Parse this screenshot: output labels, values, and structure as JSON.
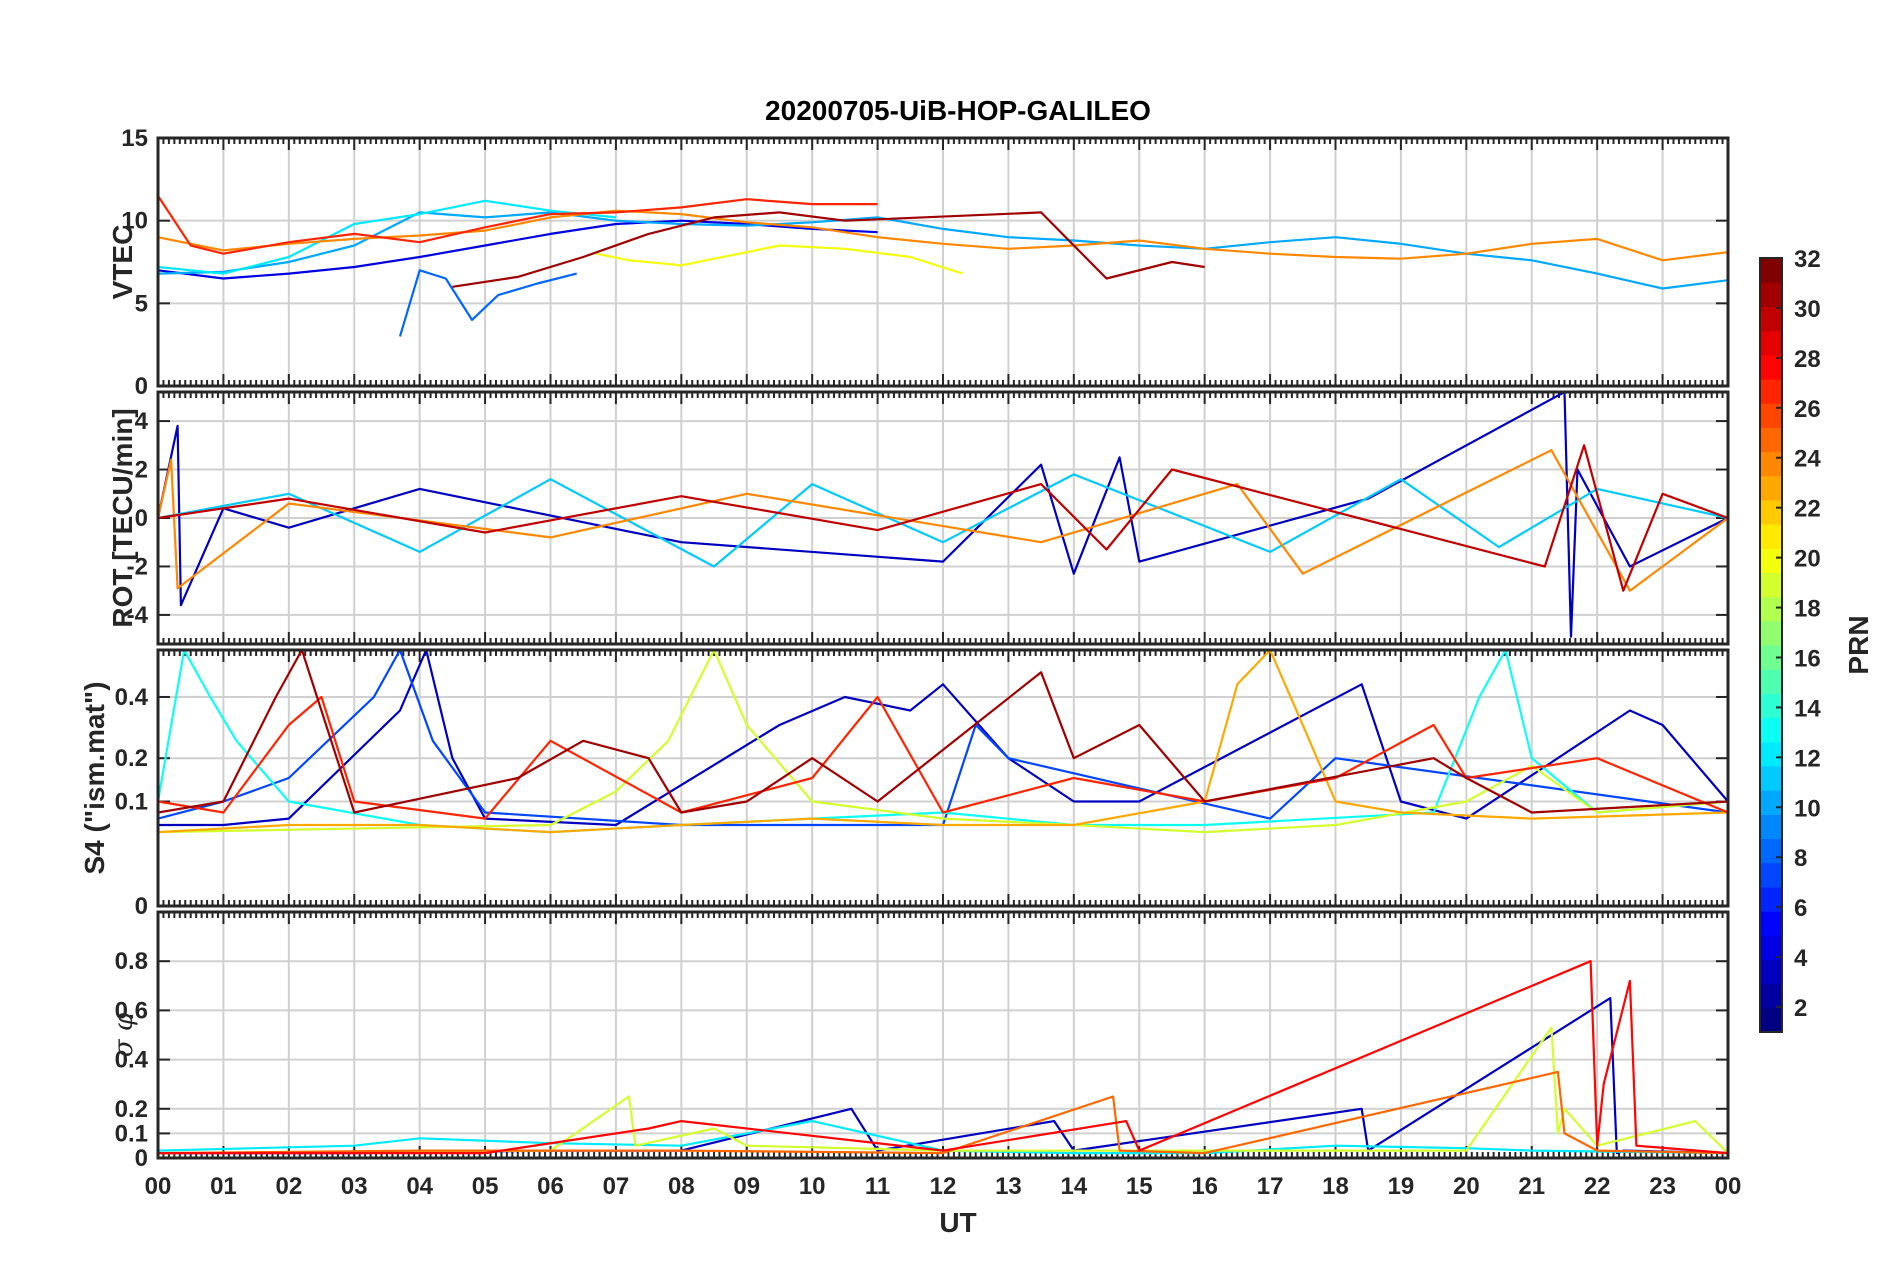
{
  "chart_data": {
    "type": "line",
    "title": "20200705-UiB-HOP-GALILEO",
    "xlabel": "UT",
    "x_ticks": [
      "00",
      "01",
      "02",
      "03",
      "04",
      "05",
      "06",
      "07",
      "08",
      "09",
      "10",
      "11",
      "12",
      "13",
      "14",
      "15",
      "16",
      "17",
      "18",
      "19",
      "20",
      "21",
      "22",
      "23",
      "00"
    ],
    "x_range_hours": [
      0,
      24
    ],
    "grid": true,
    "colorbar": {
      "label": "PRN",
      "range": [
        1,
        32
      ],
      "ticks": [
        "2",
        "4",
        "6",
        "8",
        "10",
        "12",
        "14",
        "16",
        "18",
        "20",
        "22",
        "24",
        "26",
        "28",
        "30",
        "32"
      ],
      "colormap": "jet",
      "placement": "right"
    },
    "panels": [
      {
        "id": "vtec",
        "ylabel": "VTEC",
        "ylim": [
          0,
          15
        ],
        "y_ticks": [
          {
            "v": 0,
            "t": "0"
          },
          {
            "v": 5,
            "t": "5"
          },
          {
            "v": 10,
            "t": "10"
          },
          {
            "v": 15,
            "t": "15"
          }
        ],
        "series": [
          {
            "prn": 4,
            "x": [
              0,
              1,
              2,
              3,
              4,
              5,
              6,
              7,
              8,
              9,
              10,
              11
            ],
            "y": [
              7.0,
              6.5,
              6.8,
              7.2,
              7.8,
              8.5,
              9.2,
              9.8,
              10.0,
              9.8,
              9.5,
              9.3
            ]
          },
          {
            "prn": 8,
            "x": [
              3.7,
              4.0,
              4.4,
              4.8,
              5.2,
              5.8,
              6.4
            ],
            "y": [
              3.0,
              7.0,
              6.5,
              4.0,
              5.5,
              6.2,
              6.8
            ]
          },
          {
            "prn": 10,
            "x": [
              0,
              1,
              2,
              3,
              4,
              5,
              6,
              7,
              8,
              9,
              10,
              11,
              12,
              13,
              14,
              15,
              16,
              17,
              18,
              19,
              20,
              21,
              22,
              23,
              24
            ],
            "y": [
              6.8,
              6.9,
              7.5,
              8.5,
              10.5,
              10.2,
              10.5,
              10.0,
              9.8,
              9.7,
              9.9,
              10.2,
              9.5,
              9.0,
              8.8,
              8.5,
              8.3,
              8.7,
              9.0,
              8.6,
              8.0,
              7.6,
              6.8,
              5.9,
              6.4
            ]
          },
          {
            "prn": 12,
            "x": [
              0,
              1,
              2,
              3,
              4,
              5,
              6,
              7
            ],
            "y": [
              7.2,
              6.8,
              7.8,
              9.8,
              10.4,
              11.2,
              10.6,
              10.2
            ]
          },
          {
            "prn": 20,
            "x": [
              6.7,
              7.2,
              8.0,
              9.5,
              10.5,
              11.5,
              12.3
            ],
            "y": [
              8.0,
              7.6,
              7.3,
              8.5,
              8.3,
              7.8,
              6.8
            ]
          },
          {
            "prn": 24,
            "x": [
              0,
              1,
              2,
              3,
              4,
              5,
              6,
              7,
              8,
              9,
              10,
              11,
              12,
              13,
              14,
              15,
              16,
              17,
              18,
              19,
              20,
              21,
              22,
              23,
              24
            ],
            "y": [
              9.0,
              8.2,
              8.6,
              8.9,
              9.1,
              9.4,
              10.2,
              10.6,
              10.4,
              9.9,
              9.6,
              9.0,
              8.6,
              8.3,
              8.5,
              8.8,
              8.3,
              8.0,
              7.8,
              7.7,
              8.0,
              8.6,
              8.9,
              7.6,
              8.1
            ]
          },
          {
            "prn": 27,
            "x": [
              0,
              0.5,
              1,
              2,
              3,
              4,
              5,
              6,
              7,
              8,
              9,
              10,
              11
            ],
            "y": [
              11.5,
              8.5,
              8.0,
              8.7,
              9.2,
              8.7,
              9.6,
              10.4,
              10.5,
              10.8,
              11.3,
              11.0,
              11.0
            ]
          },
          {
            "prn": 31,
            "x": [
              4.5,
              5.5,
              6.5,
              7.5,
              8.5,
              9.5,
              10.5,
              13.5,
              14.5,
              15.5,
              16.0
            ],
            "y": [
              6.0,
              6.6,
              7.8,
              9.2,
              10.2,
              10.5,
              10.0,
              10.5,
              6.5,
              7.5,
              7.2
            ]
          }
        ]
      },
      {
        "id": "rot",
        "ylabel": "ROT [TECU/min]",
        "ylim": [
          -5.2,
          5.2
        ],
        "y_ticks": [
          {
            "v": 4,
            "t": "4"
          },
          {
            "v": 2,
            "t": "2"
          },
          {
            "v": 0,
            "t": "0"
          },
          {
            "v": -2,
            "t": "-2"
          },
          {
            "v": -4,
            "t": "-4"
          }
        ],
        "series": [
          {
            "prn": 3,
            "x": [
              0,
              0.3,
              0.35,
              1,
              2,
              4,
              8,
              12,
              13.5,
              14,
              14.7,
              15,
              18.5,
              21.5,
              21.6,
              21.7,
              22.5,
              24
            ],
            "y": [
              0,
              3.8,
              -3.6,
              0.4,
              -0.4,
              1.2,
              -1.0,
              -1.8,
              2.2,
              -2.3,
              2.5,
              -1.8,
              0.8,
              5.2,
              -4.9,
              2.0,
              -2.0,
              0
            ]
          },
          {
            "prn": 11,
            "x": [
              0,
              2,
              4,
              6,
              8.5,
              10,
              12,
              14,
              17,
              19,
              20.5,
              22,
              24
            ],
            "y": [
              0,
              1.0,
              -1.4,
              1.6,
              -2.0,
              1.4,
              -1.0,
              1.8,
              -1.4,
              1.6,
              -1.2,
              1.2,
              0
            ]
          },
          {
            "prn": 24,
            "x": [
              0,
              0.2,
              0.3,
              2,
              6,
              9,
              13.5,
              16.5,
              17.5,
              21.3,
              22.5,
              24
            ],
            "y": [
              0,
              2.4,
              -2.9,
              0.6,
              -0.8,
              1.0,
              -1.0,
              1.4,
              -2.3,
              2.8,
              -3.0,
              0
            ]
          },
          {
            "prn": 30,
            "x": [
              0,
              2,
              5,
              8,
              11,
              13.5,
              14.5,
              15.5,
              21.2,
              21.8,
              22.4,
              23,
              24
            ],
            "y": [
              0,
              0.8,
              -0.6,
              0.9,
              -0.5,
              1.4,
              -1.3,
              2.0,
              -2.0,
              3.0,
              -3.0,
              1.0,
              0
            ]
          }
        ]
      },
      {
        "id": "s4",
        "ylabel": "S4 (\"ism.mat\")",
        "ylim": [
          0,
          0.6
        ],
        "y_scale": "sqrt",
        "y_ticks": [
          {
            "v": 0,
            "t": "0"
          },
          {
            "v": 0.1,
            "t": "0.1"
          },
          {
            "v": 0.2,
            "t": "0.2"
          },
          {
            "v": 0.4,
            "t": "0.4"
          }
        ],
        "series": [
          {
            "prn": 3,
            "x": [
              0,
              1,
              2,
              3.7,
              4.1,
              4.5,
              5,
              7,
              9.5,
              10.5,
              11.5,
              12,
              13,
              14,
              15,
              18.4,
              19,
              20,
              22.5,
              23,
              24
            ],
            "y": [
              0.06,
              0.06,
              0.07,
              0.35,
              0.6,
              0.2,
              0.07,
              0.06,
              0.3,
              0.4,
              0.35,
              0.45,
              0.2,
              0.1,
              0.1,
              0.45,
              0.1,
              0.07,
              0.35,
              0.3,
              0.1
            ]
          },
          {
            "prn": 7,
            "x": [
              0,
              1,
              2,
              3.3,
              3.7,
              4.2,
              5,
              8,
              12,
              12.5,
              13,
              17,
              18,
              24
            ],
            "y": [
              0.07,
              0.1,
              0.15,
              0.4,
              0.6,
              0.25,
              0.08,
              0.06,
              0.06,
              0.3,
              0.2,
              0.07,
              0.2,
              0.08
            ]
          },
          {
            "prn": 13,
            "x": [
              0,
              0.4,
              0.8,
              1.2,
              2,
              4,
              6,
              8,
              10,
              12,
              14,
              16,
              19.5,
              20.2,
              20.6,
              21,
              22,
              24
            ],
            "y": [
              0.1,
              0.6,
              0.4,
              0.25,
              0.1,
              0.06,
              0.05,
              0.06,
              0.07,
              0.08,
              0.06,
              0.06,
              0.08,
              0.4,
              0.6,
              0.2,
              0.08,
              0.1
            ]
          },
          {
            "prn": 19,
            "x": [
              0,
              6,
              7,
              7.8,
              8.5,
              9,
              10,
              12,
              14,
              16,
              18,
              20,
              21,
              22,
              24
            ],
            "y": [
              0.05,
              0.06,
              0.12,
              0.25,
              0.6,
              0.3,
              0.1,
              0.07,
              0.06,
              0.05,
              0.06,
              0.1,
              0.18,
              0.08,
              0.1
            ]
          },
          {
            "prn": 23,
            "x": [
              0,
              2,
              4,
              6,
              8,
              10,
              12,
              14,
              16,
              16.5,
              17,
              17.5,
              18,
              19,
              21,
              24
            ],
            "y": [
              0.05,
              0.06,
              0.06,
              0.05,
              0.06,
              0.07,
              0.06,
              0.06,
              0.1,
              0.45,
              0.6,
              0.3,
              0.1,
              0.08,
              0.07,
              0.08
            ]
          },
          {
            "prn": 27,
            "x": [
              0,
              1,
              2,
              2.5,
              3,
              5,
              6,
              8,
              10,
              11,
              12,
              14,
              16,
              18,
              19.5,
              20,
              22,
              24
            ],
            "y": [
              0.1,
              0.08,
              0.3,
              0.4,
              0.1,
              0.07,
              0.25,
              0.08,
              0.15,
              0.4,
              0.08,
              0.15,
              0.1,
              0.15,
              0.3,
              0.15,
              0.2,
              0.08
            ]
          },
          {
            "prn": 31,
            "x": [
              0,
              1,
              1.8,
              2.2,
              3,
              5.5,
              6.5,
              7.5,
              8,
              9,
              10,
              11,
              13.5,
              14,
              15,
              16,
              19.5,
              20,
              21,
              24
            ],
            "y": [
              0.08,
              0.1,
              0.4,
              0.6,
              0.08,
              0.15,
              0.25,
              0.2,
              0.08,
              0.1,
              0.2,
              0.1,
              0.5,
              0.2,
              0.3,
              0.1,
              0.2,
              0.15,
              0.08,
              0.1
            ]
          }
        ]
      },
      {
        "id": "sigma",
        "ylabel": "σ φ",
        "ylim": [
          0,
          1
        ],
        "y_ticks": [
          {
            "v": 0,
            "t": "0"
          },
          {
            "v": 0.1,
            "t": "0.1"
          },
          {
            "v": 0.2,
            "t": "0.2"
          },
          {
            "v": 0.4,
            "t": "0.4"
          },
          {
            "v": 0.6,
            "t": "0.6"
          },
          {
            "v": 0.8,
            "t": "0.8"
          }
        ],
        "series": [
          {
            "prn": 3,
            "x": [
              0,
              3,
              6,
              8,
              10.6,
              11,
              13.7,
              14,
              18.4,
              18.5,
              22.2,
              22.3,
              22.4,
              24
            ],
            "y": [
              0.02,
              0.02,
              0.03,
              0.03,
              0.2,
              0.03,
              0.15,
              0.03,
              0.2,
              0.03,
              0.65,
              0.02,
              0.03,
              0.02
            ]
          },
          {
            "prn": 12,
            "x": [
              0,
              3,
              4,
              6,
              8,
              10,
              12,
              14,
              16,
              18,
              20,
              21,
              24
            ],
            "y": [
              0.03,
              0.05,
              0.08,
              0.06,
              0.05,
              0.15,
              0.03,
              0.02,
              0.02,
              0.05,
              0.04,
              0.03,
              0.02
            ]
          },
          {
            "prn": 19,
            "x": [
              0,
              6,
              7.2,
              7.3,
              8.5,
              9,
              12,
              20,
              21.3,
              21.4,
              21.5,
              22,
              23.5,
              24
            ],
            "y": [
              0.02,
              0.03,
              0.25,
              0.05,
              0.12,
              0.05,
              0.03,
              0.03,
              0.53,
              0.1,
              0.2,
              0.05,
              0.15,
              0.02
            ]
          },
          {
            "prn": 25,
            "x": [
              0,
              4,
              8,
              12,
              14.6,
              14.7,
              16,
              21.4,
              21.5,
              22,
              24
            ],
            "y": [
              0.02,
              0.03,
              0.03,
              0.02,
              0.25,
              0.03,
              0.02,
              0.35,
              0.1,
              0.03,
              0.02
            ]
          },
          {
            "prn": 28,
            "x": [
              0,
              5,
              7.5,
              8,
              12,
              14.8,
              15,
              21.9,
              22.0,
              22.1,
              22.5,
              22.6,
              24
            ],
            "y": [
              0.02,
              0.02,
              0.12,
              0.15,
              0.03,
              0.15,
              0.03,
              0.8,
              0.05,
              0.3,
              0.72,
              0.05,
              0.02
            ]
          }
        ]
      }
    ]
  }
}
